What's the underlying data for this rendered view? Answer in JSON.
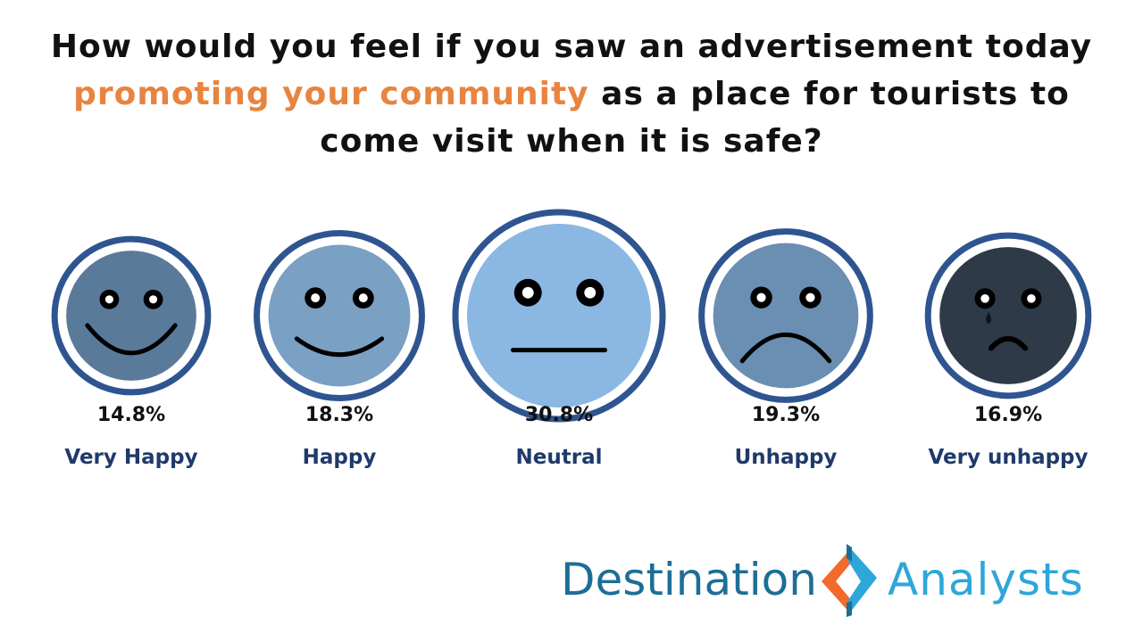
{
  "title": {
    "before": "How would you feel if you saw an advertisement today ",
    "highlight": "promoting your community",
    "after": " as a place for tourists to come visit when it is safe?"
  },
  "colors": {
    "highlight": "#e8843f",
    "ring": "#2f5590",
    "label": "#1f3a6b"
  },
  "chart_data": {
    "type": "bar",
    "title": "How would you feel if you saw an advertisement today promoting your community as a place for tourists to come visit when it is safe?",
    "unit": "%",
    "categories": [
      "Very Happy",
      "Happy",
      "Neutral",
      "Unhappy",
      "Very unhappy"
    ],
    "values": [
      14.8,
      18.3,
      30.8,
      19.3,
      16.9
    ],
    "value_labels": [
      "14.8%",
      "18.3%",
      "30.8%",
      "19.3%",
      "16.9%"
    ],
    "face_icons": [
      "very-happy-face-icon",
      "happy-face-icon",
      "neutral-face-icon",
      "unhappy-face-icon",
      "very-unhappy-face-icon"
    ],
    "face_colors": [
      "#5a7a9a",
      "#7aa0c4",
      "#8ab8e2",
      "#6a8fb2",
      "#2e3a48"
    ]
  },
  "logo": {
    "word1": "Destination",
    "word2": "Analysts",
    "colors": [
      "#1d6e96",
      "#2ea6d9",
      "#f26b2a"
    ]
  }
}
